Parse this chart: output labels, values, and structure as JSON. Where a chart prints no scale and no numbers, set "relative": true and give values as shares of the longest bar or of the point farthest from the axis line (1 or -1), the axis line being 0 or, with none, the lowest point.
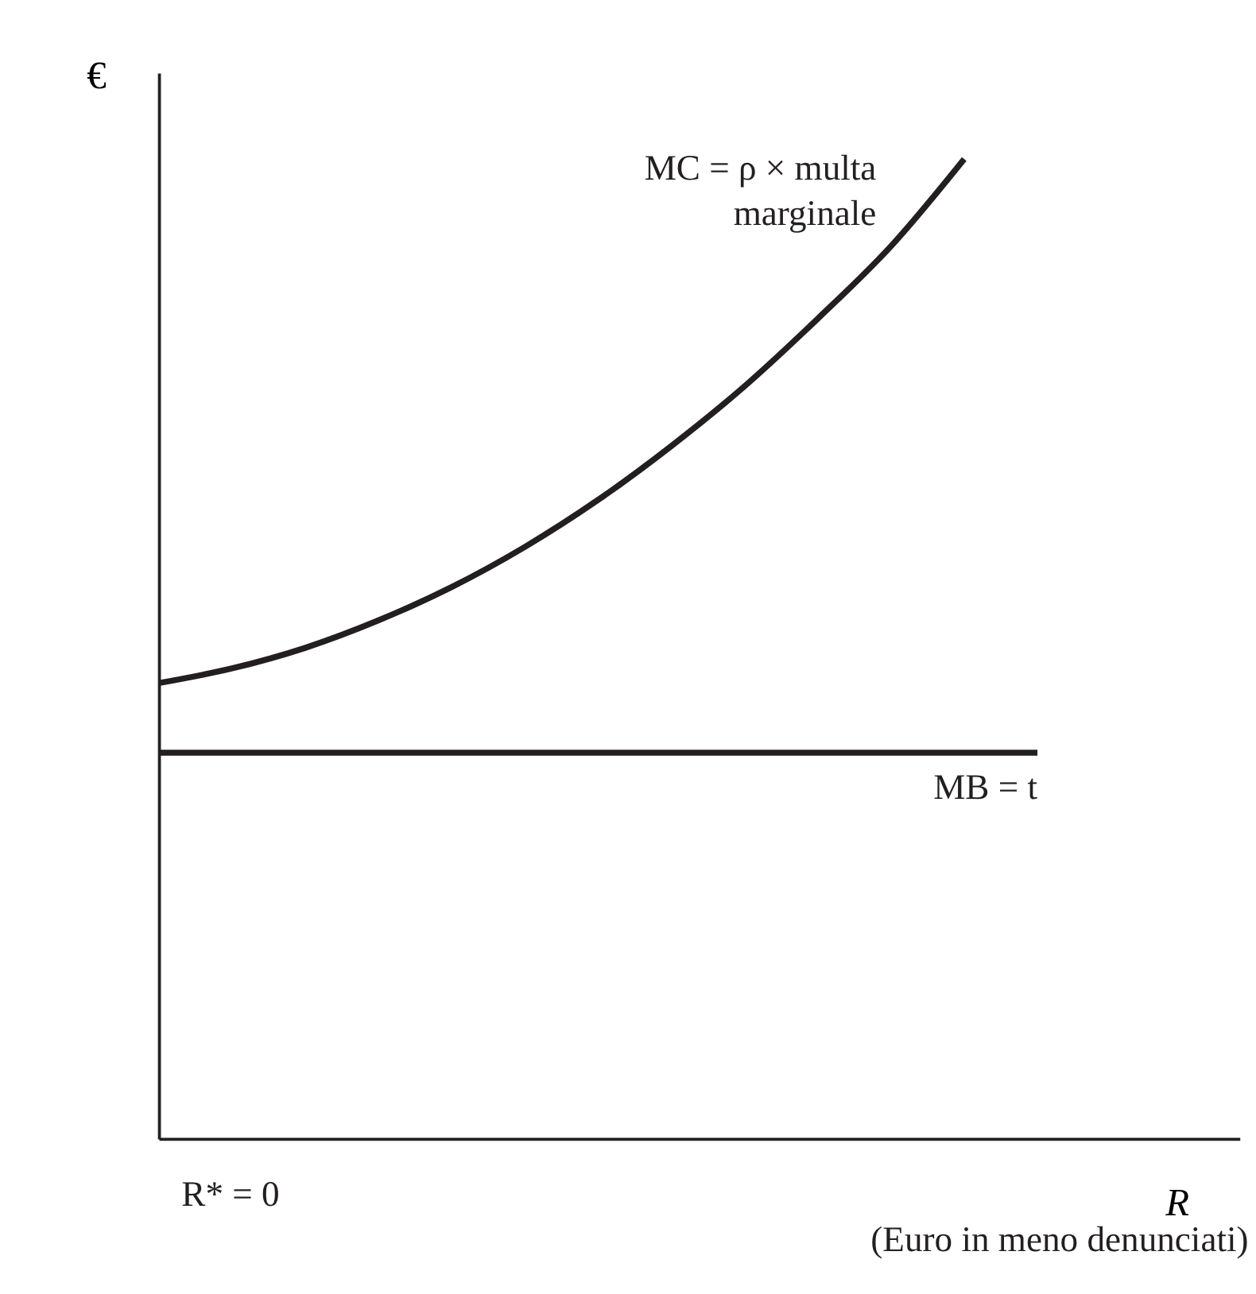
{
  "chart_data": {
    "type": "line",
    "relative": true,
    "xlabel": "R",
    "ylabel": "€",
    "categories": [
      null,
      null,
      null,
      null,
      null,
      null,
      null,
      null,
      null,
      null,
      null,
      null,
      null
    ],
    "series": [
      {
        "name": "MC = ρ × multa marginale",
        "color": "#231f20",
        "values": [
          0.465,
          0.48,
          0.501,
          0.529,
          0.563,
          0.604,
          0.652,
          0.707,
          0.768,
          0.837,
          0.911,
          1.0,
          null
        ]
      },
      {
        "name": "MB = t",
        "color": "#231f20",
        "values": [
          0.394,
          0.394,
          0.394,
          0.394,
          0.394,
          0.394,
          0.394,
          0.394,
          0.394,
          0.394,
          0.394,
          0.394,
          0.394
        ]
      }
    ],
    "annotations": [
      "R* = 0",
      "(Euro in meno denunciati)"
    ],
    "grid": false,
    "legend": false,
    "marker": "none",
    "line_style": "solid"
  }
}
